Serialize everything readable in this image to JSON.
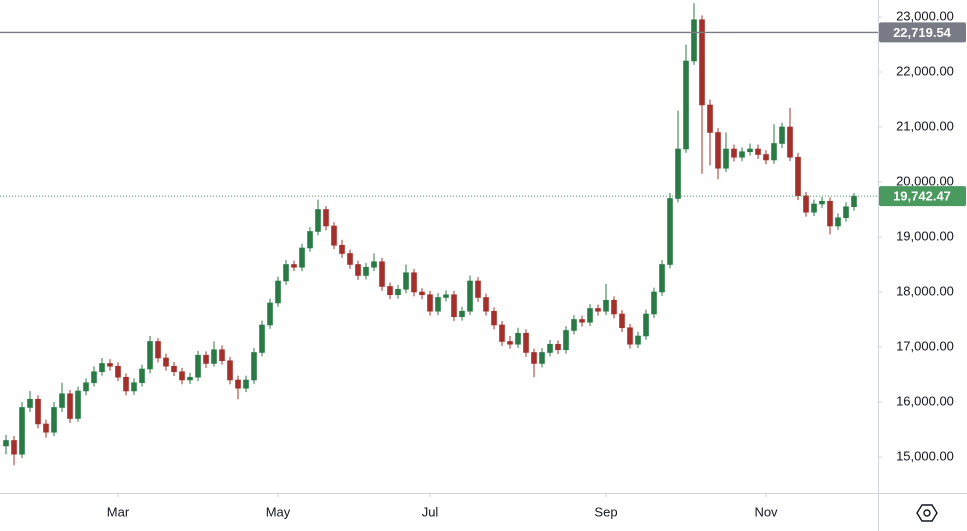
{
  "chart_data": {
    "type": "candlestick",
    "up_color": "#2a7a45",
    "down_color": "#a3302a",
    "ylim": [
      14345,
      23309
    ],
    "yticks": [
      {
        "value": 15000,
        "label": "15,000.00"
      },
      {
        "value": 16000,
        "label": "16,000.00"
      },
      {
        "value": 17000,
        "label": "17,000.00"
      },
      {
        "value": 18000,
        "label": "18,000.00"
      },
      {
        "value": 19000,
        "label": "19,000.00"
      },
      {
        "value": 20000,
        "label": "20,000.00"
      },
      {
        "value": 21000,
        "label": "21,000.00"
      },
      {
        "value": 22000,
        "label": "22,000.00"
      },
      {
        "value": 23000,
        "label": "23,000.00"
      }
    ],
    "xticks": [
      {
        "value": 14,
        "label": "Mar"
      },
      {
        "value": 34,
        "label": "May"
      },
      {
        "value": 53,
        "label": "Jul"
      },
      {
        "value": 75,
        "label": "Sep"
      },
      {
        "value": 95,
        "label": "Nov"
      }
    ],
    "price_lines": [
      {
        "value": 22719.54,
        "label": "22,719.54",
        "color": "#787b86",
        "style": "solid"
      },
      {
        "value": 19742.47,
        "label": "19,742.47",
        "color": "#4a9a5f",
        "style": "dotted"
      }
    ],
    "candles": [
      [
        15200,
        15400,
        15050,
        15300
      ],
      [
        15300,
        15380,
        14850,
        15050
      ],
      [
        15050,
        16000,
        14980,
        15900
      ],
      [
        15900,
        16200,
        15820,
        16050
      ],
      [
        16050,
        16120,
        15520,
        15600
      ],
      [
        15600,
        15680,
        15350,
        15450
      ],
      [
        15450,
        16000,
        15380,
        15900
      ],
      [
        15900,
        16350,
        15820,
        16150
      ],
      [
        16150,
        16220,
        15620,
        15700
      ],
      [
        15700,
        16280,
        15640,
        16200
      ],
      [
        16200,
        16430,
        16120,
        16350
      ],
      [
        16350,
        16650,
        16280,
        16550
      ],
      [
        16550,
        16800,
        16480,
        16700
      ],
      [
        16700,
        16780,
        16570,
        16650
      ],
      [
        16650,
        16720,
        16380,
        16450
      ],
      [
        16450,
        16520,
        16120,
        16200
      ],
      [
        16200,
        16430,
        16130,
        16350
      ],
      [
        16350,
        16680,
        16280,
        16600
      ],
      [
        16600,
        17200,
        16520,
        17100
      ],
      [
        17100,
        17160,
        16720,
        16800
      ],
      [
        16800,
        16880,
        16570,
        16650
      ],
      [
        16650,
        16730,
        16470,
        16550
      ],
      [
        16550,
        16620,
        16320,
        16400
      ],
      [
        16400,
        16530,
        16330,
        16450
      ],
      [
        16450,
        16930,
        16380,
        16850
      ],
      [
        16850,
        16920,
        16620,
        16700
      ],
      [
        16700,
        17100,
        16640,
        16950
      ],
      [
        16950,
        17030,
        16680,
        16750
      ],
      [
        16750,
        16820,
        16320,
        16400
      ],
      [
        16400,
        16480,
        16050,
        16250
      ],
      [
        16250,
        16480,
        16180,
        16400
      ],
      [
        16400,
        16980,
        16330,
        16900
      ],
      [
        16900,
        17480,
        16830,
        17400
      ],
      [
        17400,
        17880,
        17330,
        17800
      ],
      [
        17800,
        18280,
        17730,
        18200
      ],
      [
        18200,
        18580,
        18130,
        18500
      ],
      [
        18500,
        18570,
        18380,
        18450
      ],
      [
        18450,
        18880,
        18380,
        18800
      ],
      [
        18800,
        19180,
        18730,
        19100
      ],
      [
        19100,
        19680,
        19030,
        19500
      ],
      [
        19500,
        19560,
        19120,
        19200
      ],
      [
        19200,
        19270,
        18780,
        18850
      ],
      [
        18850,
        18950,
        18620,
        18700
      ],
      [
        18700,
        18770,
        18420,
        18500
      ],
      [
        18500,
        18570,
        18220,
        18300
      ],
      [
        18300,
        18530,
        18230,
        18450
      ],
      [
        18450,
        18700,
        18380,
        18550
      ],
      [
        18550,
        18620,
        18020,
        18100
      ],
      [
        18100,
        18170,
        17870,
        17950
      ],
      [
        17950,
        18130,
        17880,
        18050
      ],
      [
        18050,
        18500,
        17980,
        18350
      ],
      [
        18350,
        18420,
        17920,
        18000
      ],
      [
        18000,
        18070,
        17870,
        17950
      ],
      [
        17950,
        18020,
        17570,
        17650
      ],
      [
        17650,
        17980,
        17580,
        17900
      ],
      [
        17900,
        18030,
        17830,
        17950
      ],
      [
        17950,
        18020,
        17470,
        17550
      ],
      [
        17550,
        17730,
        17480,
        17650
      ],
      [
        17650,
        18300,
        17580,
        18200
      ],
      [
        18200,
        18270,
        17820,
        17900
      ],
      [
        17900,
        17970,
        17570,
        17650
      ],
      [
        17650,
        17720,
        17320,
        17400
      ],
      [
        17400,
        17470,
        17020,
        17100
      ],
      [
        17100,
        17200,
        16970,
        17050
      ],
      [
        17050,
        17350,
        16980,
        17250
      ],
      [
        17250,
        17320,
        16820,
        16900
      ],
      [
        16900,
        16970,
        16450,
        16700
      ],
      [
        16700,
        16980,
        16630,
        16900
      ],
      [
        16900,
        17130,
        16830,
        17050
      ],
      [
        17050,
        17120,
        16870,
        16950
      ],
      [
        16950,
        17380,
        16880,
        17300
      ],
      [
        17300,
        17580,
        17230,
        17500
      ],
      [
        17500,
        17570,
        17370,
        17450
      ],
      [
        17450,
        17780,
        17380,
        17700
      ],
      [
        17700,
        17770,
        17570,
        17650
      ],
      [
        17650,
        18150,
        17580,
        17850
      ],
      [
        17850,
        17920,
        17520,
        17600
      ],
      [
        17600,
        17670,
        17270,
        17350
      ],
      [
        17350,
        17420,
        16970,
        17050
      ],
      [
        17050,
        17280,
        16980,
        17200
      ],
      [
        17200,
        17680,
        17130,
        17600
      ],
      [
        17600,
        18080,
        17530,
        18000
      ],
      [
        18000,
        18580,
        17930,
        18500
      ],
      [
        18500,
        19800,
        18430,
        19700
      ],
      [
        19700,
        21300,
        19630,
        20600
      ],
      [
        20600,
        22500,
        20530,
        22200
      ],
      [
        22200,
        23250,
        22130,
        22950
      ],
      [
        22950,
        23030,
        20150,
        21400
      ],
      [
        21400,
        21500,
        20300,
        20900
      ],
      [
        20900,
        20980,
        20050,
        20250
      ],
      [
        20250,
        20900,
        20180,
        20600
      ],
      [
        20600,
        20680,
        20370,
        20450
      ],
      [
        20450,
        20630,
        20380,
        20550
      ],
      [
        20550,
        20700,
        20480,
        20600
      ],
      [
        20600,
        20680,
        20420,
        20500
      ],
      [
        20500,
        20580,
        20320,
        20400
      ],
      [
        20400,
        21050,
        20330,
        20700
      ],
      [
        20700,
        21080,
        20620,
        21000
      ],
      [
        21000,
        21350,
        20380,
        20450
      ],
      [
        20450,
        20530,
        19670,
        19750
      ],
      [
        19750,
        19820,
        19370,
        19450
      ],
      [
        19450,
        19680,
        19380,
        19600
      ],
      [
        19600,
        19730,
        19530,
        19650
      ],
      [
        19650,
        19720,
        19050,
        19200
      ],
      [
        19200,
        19430,
        19130,
        19350
      ],
      [
        19350,
        19630,
        19280,
        19550
      ],
      [
        19550,
        19800,
        19480,
        19742.47
      ]
    ]
  }
}
